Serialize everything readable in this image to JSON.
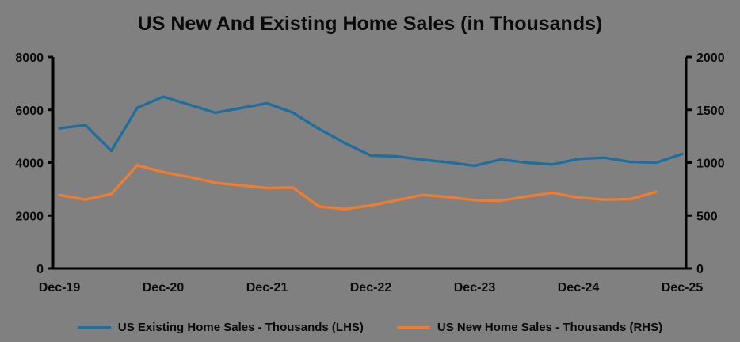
{
  "chart_data": {
    "type": "line",
    "title": "US New And Existing Home Sales (in Thousands)",
    "x": [
      "Dec-19",
      "Mar-20",
      "Jun-20",
      "Sep-20",
      "Dec-20",
      "Mar-21",
      "Jun-21",
      "Sep-21",
      "Dec-21",
      "Mar-22",
      "Jun-22",
      "Sep-22",
      "Dec-22",
      "Mar-23",
      "Jun-23",
      "Sep-23",
      "Dec-23",
      "Mar-24",
      "Jun-24",
      "Sep-24",
      "Dec-24",
      "Mar-25",
      "Jun-25",
      "Sep-25",
      "Dec-25"
    ],
    "x_axis_tick_labels": [
      "Dec-19",
      "Dec-20",
      "Dec-21",
      "Dec-22",
      "Dec-23",
      "Dec-24",
      "Dec-25"
    ],
    "series": [
      {
        "name": "US Existing Home Sales - Thousands (LHS)",
        "axis": "left",
        "color": "#1F6F9E",
        "values": [
          5300,
          5420,
          4450,
          6080,
          6500,
          6200,
          5890,
          6070,
          6250,
          5890,
          5280,
          4740,
          4270,
          4240,
          4110,
          4010,
          3880,
          4120,
          4000,
          3930,
          4140,
          4190,
          4030,
          4000,
          4330
        ]
      },
      {
        "name": "US New Home Sales - Thousands (RHS)",
        "axis": "right",
        "color": "#ED7D31",
        "values": [
          695,
          650,
          705,
          975,
          910,
          865,
          810,
          785,
          760,
          765,
          585,
          560,
          595,
          645,
          695,
          675,
          645,
          640,
          680,
          715,
          670,
          650,
          655,
          725,
          null
        ]
      }
    ],
    "y_axis_left": {
      "min": 0,
      "max": 8000,
      "ticks": [
        8000,
        6000,
        4000,
        2000,
        0
      ]
    },
    "y_axis_right": {
      "min": 0,
      "max": 2000,
      "ticks": [
        2000,
        1500,
        1000,
        500,
        0
      ]
    },
    "grid": false,
    "legend_position": "bottom",
    "background_color": "#808080",
    "axis_color": "#000000",
    "tick_label_color": "#0a0a0a"
  }
}
